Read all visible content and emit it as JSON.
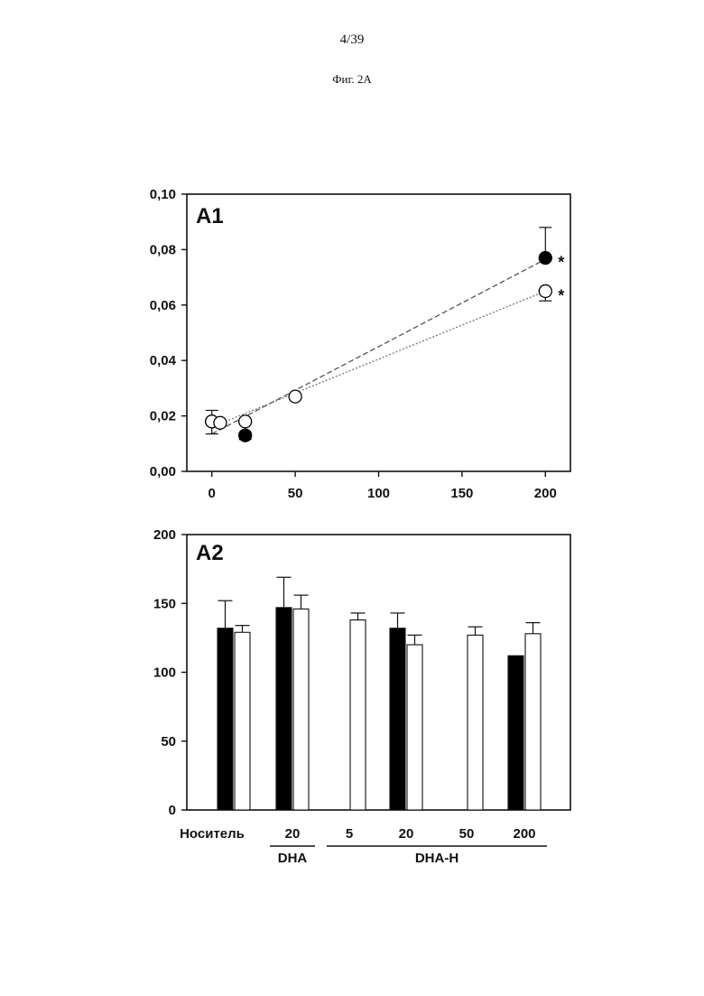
{
  "page": {
    "number": "4/39",
    "figure_caption": "Фиг. 2А"
  },
  "chart_data": [
    {
      "type": "scatter",
      "panel_label": "A1",
      "xlim": [
        -15,
        215
      ],
      "ylim": [
        0,
        0.1
      ],
      "x_ticks": [
        0,
        50,
        100,
        150,
        200
      ],
      "x_tick_labels": [
        "0",
        "50",
        "100",
        "150",
        "200"
      ],
      "y_ticks": [
        0,
        0.02,
        0.04,
        0.06,
        0.08,
        0.1
      ],
      "y_tick_labels": [
        "0,00",
        "0,02",
        "0,04",
        "0,06",
        "0,08",
        "0,10"
      ],
      "grid": false,
      "series": [
        {
          "marker": "filled",
          "x": [
            0,
            20,
            200
          ],
          "y": [
            0.018,
            0.013,
            0.077
          ],
          "err": [
            0.004,
            0.0015,
            0.011
          ],
          "err_dir": [
            "up",
            "down",
            "up"
          ],
          "fit": [
            [
              0,
              0.0135
            ],
            [
              200,
              0.0765
            ]
          ],
          "fit_style": "dashed"
        },
        {
          "marker": "open",
          "x": [
            0,
            5,
            20,
            50,
            200
          ],
          "y": [
            0.018,
            0.0175,
            0.018,
            0.027,
            0.065
          ],
          "err": [
            0.0045,
            0.0,
            0.0,
            0.0,
            0.0035
          ],
          "err_dir": [
            "down",
            "down",
            "down",
            "down",
            "down"
          ],
          "fit": [
            [
              0,
              0.016
            ],
            [
              200,
              0.065
            ]
          ],
          "fit_style": "dotted"
        }
      ],
      "annotations": [
        {
          "text": "*",
          "x": 200,
          "y": 0.077
        },
        {
          "text": "*",
          "x": 200,
          "y": 0.065
        }
      ],
      "colors": {
        "filled": "#000000",
        "open": "#ffffff",
        "stroke": "#000000"
      }
    },
    {
      "type": "bar",
      "panel_label": "A2",
      "ylim": [
        0,
        200
      ],
      "y_ticks": [
        0,
        50,
        100,
        150,
        200
      ],
      "y_tick_labels": [
        "0",
        "50",
        "100",
        "150",
        "200"
      ],
      "grid": false,
      "categories": [
        "Носитель",
        "20",
        "5",
        "20",
        "50",
        "200"
      ],
      "group_labels": [
        {
          "text": "DHA",
          "from": 1,
          "to": 1
        },
        {
          "text": "DHA-H",
          "from": 2,
          "to": 5
        }
      ],
      "series": [
        {
          "color": "#000000",
          "values": [
            132,
            147,
            null,
            132,
            null,
            112
          ],
          "err": [
            20,
            22,
            null,
            11,
            null,
            0
          ]
        },
        {
          "color": "#ffffff",
          "values": [
            129,
            146,
            138,
            120,
            127,
            128
          ],
          "err": [
            5,
            10,
            5,
            7,
            6,
            8
          ]
        }
      ]
    }
  ]
}
